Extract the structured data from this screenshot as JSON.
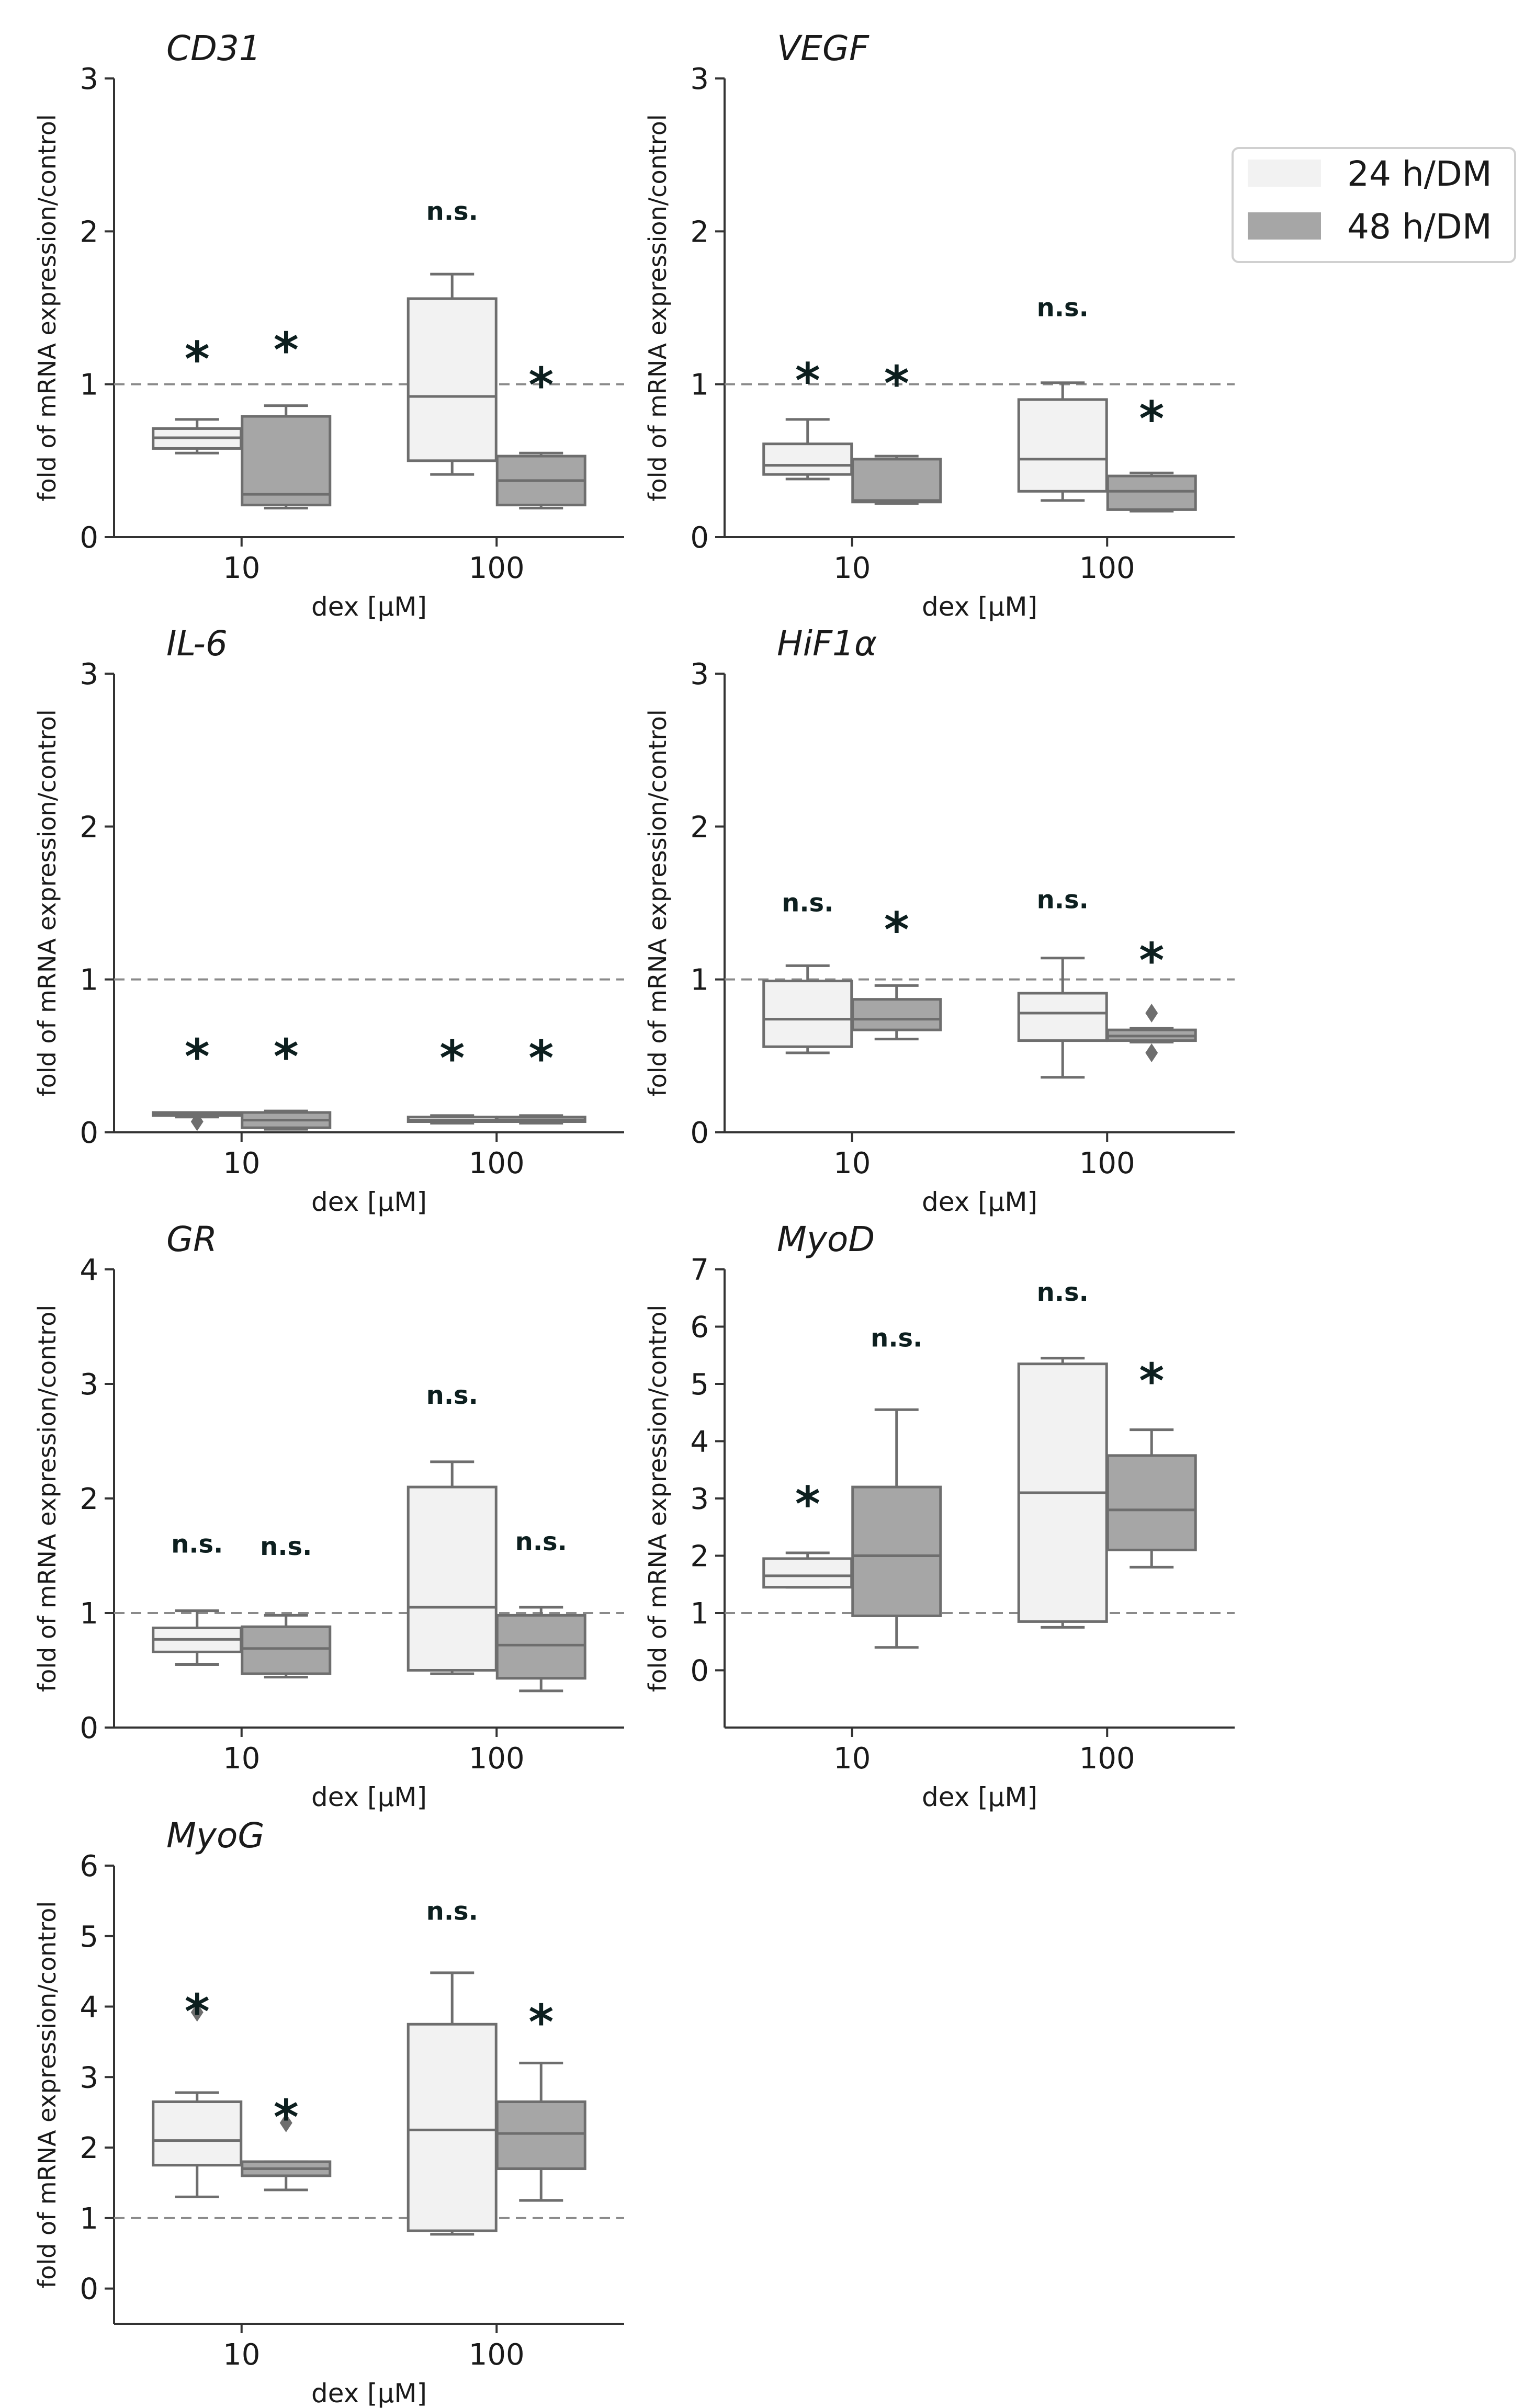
{
  "legend": {
    "entries": [
      {
        "label": "24 h/DM",
        "color": "#f2f2f2"
      },
      {
        "label": "48 h/DM",
        "color": "#a6a6a6"
      }
    ]
  },
  "style": {
    "light_fill": "#f2f2f2",
    "dark_fill": "#a6a6a6",
    "box_edge": "#6e6e6e",
    "axis_color": "#333333",
    "reference_line": "#8a8a8a",
    "text_color": "#1a1a1a",
    "star_color": "#0d1f1f"
  },
  "chart_data": [
    {
      "type": "box",
      "title": "CD31",
      "xlabel": "dex [µM]",
      "ylabel": "fold of mRNA expression/control",
      "categories": [
        "10",
        "100"
      ],
      "ylim": [
        0,
        3
      ],
      "yticks": [
        "0",
        "1",
        "2",
        "3"
      ],
      "reference_line": 1,
      "series": [
        {
          "name": "24 h/DM",
          "boxes": [
            {
              "whislo": 0.55,
              "q1": 0.58,
              "med": 0.65,
              "q3": 0.71,
              "whishi": 0.77,
              "fliers": []
            },
            {
              "whislo": 0.41,
              "q1": 0.5,
              "med": 0.92,
              "q3": 1.56,
              "whishi": 1.72,
              "fliers": []
            }
          ]
        },
        {
          "name": "48 h/DM",
          "boxes": [
            {
              "whislo": 0.19,
              "q1": 0.21,
              "med": 0.28,
              "q3": 0.79,
              "whishi": 0.86,
              "fliers": []
            },
            {
              "whislo": 0.19,
              "q1": 0.21,
              "med": 0.37,
              "q3": 0.53,
              "whishi": 0.55,
              "fliers": []
            }
          ]
        }
      ],
      "annotations": [
        {
          "category": "10",
          "series": "24 h/DM",
          "text": "*",
          "y": 1.22
        },
        {
          "category": "10",
          "series": "48 h/DM",
          "text": "*",
          "y": 1.28
        },
        {
          "category": "100",
          "series": "24 h/DM",
          "text": "n.s.",
          "y": 2.13
        },
        {
          "category": "100",
          "series": "48 h/DM",
          "text": "*",
          "y": 1.05
        }
      ]
    },
    {
      "type": "box",
      "title": "VEGF",
      "xlabel": "dex [µM]",
      "ylabel": "fold of mRNA expression/control",
      "categories": [
        "10",
        "100"
      ],
      "ylim": [
        0,
        3
      ],
      "yticks": [
        "0",
        "1",
        "2",
        "3"
      ],
      "reference_line": 1,
      "series": [
        {
          "name": "24 h/DM",
          "boxes": [
            {
              "whislo": 0.38,
              "q1": 0.41,
              "med": 0.47,
              "q3": 0.61,
              "whishi": 0.77,
              "fliers": []
            },
            {
              "whislo": 0.24,
              "q1": 0.3,
              "med": 0.51,
              "q3": 0.9,
              "whishi": 1.01,
              "fliers": []
            }
          ]
        },
        {
          "name": "48 h/DM",
          "boxes": [
            {
              "whislo": 0.22,
              "q1": 0.23,
              "med": 0.24,
              "q3": 0.51,
              "whishi": 0.53,
              "fliers": []
            },
            {
              "whislo": 0.17,
              "q1": 0.18,
              "med": 0.3,
              "q3": 0.4,
              "whishi": 0.42,
              "fliers": []
            }
          ]
        }
      ],
      "annotations": [
        {
          "category": "10",
          "series": "24 h/DM",
          "text": "*",
          "y": 1.08
        },
        {
          "category": "10",
          "series": "48 h/DM",
          "text": "*",
          "y": 1.06
        },
        {
          "category": "100",
          "series": "24 h/DM",
          "text": "n.s.",
          "y": 1.5
        },
        {
          "category": "100",
          "series": "48 h/DM",
          "text": "*",
          "y": 0.83
        }
      ]
    },
    {
      "type": "box",
      "title": "IL-6",
      "xlabel": "dex [µM]",
      "ylabel": "fold of mRNA expression/control",
      "categories": [
        "10",
        "100"
      ],
      "ylim": [
        0,
        3
      ],
      "yticks": [
        "0",
        "1",
        "2",
        "3"
      ],
      "reference_line": 1,
      "series": [
        {
          "name": "24 h/DM",
          "boxes": [
            {
              "whislo": 0.1,
              "q1": 0.11,
              "med": 0.12,
              "q3": 0.13,
              "whishi": 0.13,
              "fliers": [
                0.07
              ]
            },
            {
              "whislo": 0.06,
              "q1": 0.07,
              "med": 0.08,
              "q3": 0.1,
              "whishi": 0.11,
              "fliers": []
            }
          ]
        },
        {
          "name": "48 h/DM",
          "boxes": [
            {
              "whislo": 0.02,
              "q1": 0.03,
              "med": 0.08,
              "q3": 0.13,
              "whishi": 0.14,
              "fliers": []
            },
            {
              "whislo": 0.06,
              "q1": 0.07,
              "med": 0.08,
              "q3": 0.1,
              "whishi": 0.11,
              "fliers": []
            }
          ]
        }
      ],
      "annotations": [
        {
          "category": "10",
          "series": "24 h/DM",
          "text": "*",
          "y": 0.55
        },
        {
          "category": "10",
          "series": "48 h/DM",
          "text": "*",
          "y": 0.55
        },
        {
          "category": "100",
          "series": "24 h/DM",
          "text": "*",
          "y": 0.54
        },
        {
          "category": "100",
          "series": "48 h/DM",
          "text": "*",
          "y": 0.54
        }
      ]
    },
    {
      "type": "box",
      "title": "HiF1α",
      "xlabel": "dex [µM]",
      "ylabel": "fold of mRNA expression/control",
      "categories": [
        "10",
        "100"
      ],
      "ylim": [
        0,
        3
      ],
      "yticks": [
        "0",
        "1",
        "2",
        "3"
      ],
      "reference_line": 1,
      "series": [
        {
          "name": "24 h/DM",
          "boxes": [
            {
              "whislo": 0.52,
              "q1": 0.56,
              "med": 0.74,
              "q3": 0.99,
              "whishi": 1.09,
              "fliers": []
            },
            {
              "whislo": 0.36,
              "q1": 0.6,
              "med": 0.78,
              "q3": 0.91,
              "whishi": 1.14,
              "fliers": []
            }
          ]
        },
        {
          "name": "48 h/DM",
          "boxes": [
            {
              "whislo": 0.61,
              "q1": 0.67,
              "med": 0.74,
              "q3": 0.87,
              "whishi": 0.96,
              "fliers": []
            },
            {
              "whislo": 0.59,
              "q1": 0.6,
              "med": 0.63,
              "q3": 0.67,
              "whishi": 0.68,
              "fliers": [
                0.78,
                0.52
              ]
            }
          ]
        }
      ],
      "annotations": [
        {
          "category": "10",
          "series": "24 h/DM",
          "text": "n.s.",
          "y": 1.5
        },
        {
          "category": "10",
          "series": "48 h/DM",
          "text": "*",
          "y": 1.38
        },
        {
          "category": "100",
          "series": "24 h/DM",
          "text": "n.s.",
          "y": 1.52
        },
        {
          "category": "100",
          "series": "48 h/DM",
          "text": "*",
          "y": 1.18
        }
      ]
    },
    {
      "type": "box",
      "title": "GR",
      "xlabel": "dex [µM]",
      "ylabel": "fold of mRNA expression/control",
      "categories": [
        "10",
        "100"
      ],
      "ylim": [
        0,
        4
      ],
      "yticks": [
        "0",
        "1",
        "2",
        "3",
        "4"
      ],
      "reference_line": 1,
      "series": [
        {
          "name": "24 h/DM",
          "boxes": [
            {
              "whislo": 0.55,
              "q1": 0.66,
              "med": 0.77,
              "q3": 0.87,
              "whishi": 1.02,
              "fliers": []
            },
            {
              "whislo": 0.47,
              "q1": 0.5,
              "med": 1.05,
              "q3": 2.1,
              "whishi": 2.32,
              "fliers": []
            }
          ]
        },
        {
          "name": "48 h/DM",
          "boxes": [
            {
              "whislo": 0.44,
              "q1": 0.47,
              "med": 0.69,
              "q3": 0.88,
              "whishi": 0.98,
              "fliers": []
            },
            {
              "whislo": 0.32,
              "q1": 0.43,
              "med": 0.72,
              "q3": 0.98,
              "whishi": 1.05,
              "fliers": []
            }
          ]
        }
      ],
      "annotations": [
        {
          "category": "10",
          "series": "24 h/DM",
          "text": "n.s.",
          "y": 1.6
        },
        {
          "category": "10",
          "series": "48 h/DM",
          "text": "n.s.",
          "y": 1.58
        },
        {
          "category": "100",
          "series": "24 h/DM",
          "text": "n.s.",
          "y": 2.9
        },
        {
          "category": "100",
          "series": "48 h/DM",
          "text": "n.s.",
          "y": 1.62
        }
      ]
    },
    {
      "type": "box",
      "title": "MyoD",
      "xlabel": "dex [µM]",
      "ylabel": "fold of mRNA expression/control",
      "categories": [
        "10",
        "100"
      ],
      "ylim": [
        -1,
        7
      ],
      "yticks": [
        "0",
        "1",
        "2",
        "3",
        "4",
        "5",
        "6",
        "7"
      ],
      "reference_line": 1,
      "series": [
        {
          "name": "24 h/DM",
          "boxes": [
            {
              "whislo": 1.45,
              "q1": 1.45,
              "med": 1.65,
              "q3": 1.95,
              "whishi": 2.05,
              "fliers": []
            },
            {
              "whislo": 0.75,
              "q1": 0.85,
              "med": 3.1,
              "q3": 5.35,
              "whishi": 5.45,
              "fliers": []
            }
          ]
        },
        {
          "name": "48 h/DM",
          "boxes": [
            {
              "whislo": 0.4,
              "q1": 0.95,
              "med": 2.0,
              "q3": 3.2,
              "whishi": 4.55,
              "fliers": []
            },
            {
              "whislo": 1.8,
              "q1": 2.1,
              "med": 2.8,
              "q3": 3.75,
              "whishi": 4.2,
              "fliers": []
            }
          ]
        }
      ],
      "annotations": [
        {
          "category": "10",
          "series": "24 h/DM",
          "text": "*",
          "y": 3.05
        },
        {
          "category": "10",
          "series": "48 h/DM",
          "text": "n.s.",
          "y": 5.8
        },
        {
          "category": "100",
          "series": "24 h/DM",
          "text": "n.s.",
          "y": 6.6
        },
        {
          "category": "100",
          "series": "48 h/DM",
          "text": "*",
          "y": 5.2
        }
      ]
    },
    {
      "type": "box",
      "title": "MyoG",
      "xlabel": "dex [µM]",
      "ylabel": "fold of mRNA expression/control",
      "categories": [
        "10",
        "100"
      ],
      "ylim": [
        -0.5,
        6
      ],
      "yticks": [
        "0",
        "1",
        "2",
        "3",
        "4",
        "5",
        "6"
      ],
      "reference_line": 1,
      "series": [
        {
          "name": "24 h/DM",
          "boxes": [
            {
              "whislo": 1.3,
              "q1": 1.75,
              "med": 2.1,
              "q3": 2.65,
              "whishi": 2.78,
              "fliers": [
                3.92
              ]
            },
            {
              "whislo": 0.77,
              "q1": 0.82,
              "med": 2.25,
              "q3": 3.75,
              "whishi": 4.48,
              "fliers": []
            }
          ]
        },
        {
          "name": "48 h/DM",
          "boxes": [
            {
              "whislo": 1.4,
              "q1": 1.6,
              "med": 1.7,
              "q3": 1.8,
              "whishi": 1.8,
              "fliers": [
                2.35
              ]
            },
            {
              "whislo": 1.25,
              "q1": 1.7,
              "med": 2.2,
              "q3": 2.65,
              "whishi": 3.2,
              "fliers": []
            }
          ]
        }
      ],
      "annotations": [
        {
          "category": "10",
          "series": "24 h/DM",
          "text": "*",
          "y": 4.05
        },
        {
          "category": "10",
          "series": "48 h/DM",
          "text": "*",
          "y": 2.55
        },
        {
          "category": "100",
          "series": "24 h/DM",
          "text": "n.s.",
          "y": 5.35
        },
        {
          "category": "100",
          "series": "48 h/DM",
          "text": "*",
          "y": 3.9
        }
      ]
    }
  ]
}
